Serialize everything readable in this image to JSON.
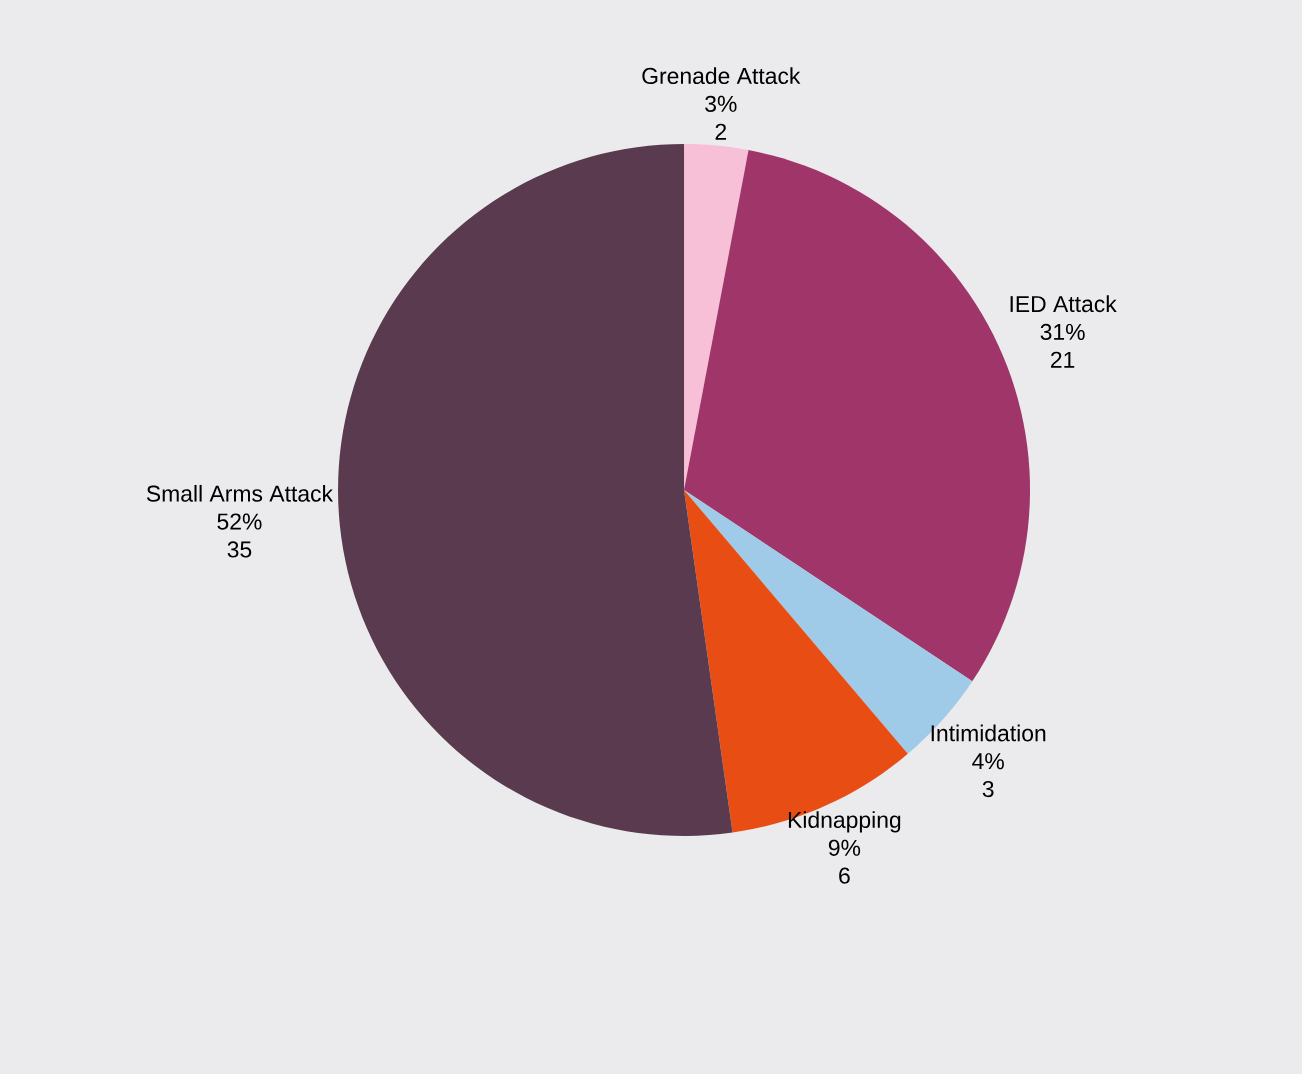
{
  "chart_data": {
    "type": "pie",
    "categories": [
      "Grenade Attack",
      "IED Attack",
      "Intimidation",
      "Kidnapping",
      "Small Arms Attack"
    ],
    "values": [
      2,
      21,
      3,
      6,
      35
    ],
    "value_labels": [
      "2",
      "21",
      "3",
      "6",
      "35"
    ],
    "annotations": [
      "3%",
      "31%",
      "4%",
      "9%",
      "52%"
    ],
    "colors": [
      "#f7c0d6",
      "#a0356a",
      "#9fcbe8",
      "#e84e14",
      "#5a3a4e"
    ]
  }
}
